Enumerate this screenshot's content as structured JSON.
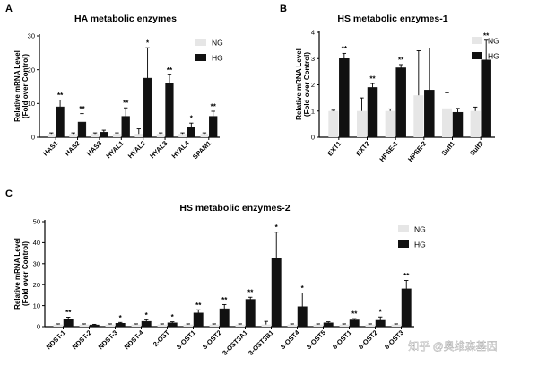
{
  "figure": {
    "watermark": "知乎 @奥维森基因",
    "colors": {
      "NG": "#e6e6e6",
      "HG": "#111111",
      "axis": "#000000",
      "error": "#000000"
    }
  },
  "chart_data": [
    {
      "panel": "A",
      "type": "bar",
      "title": "HA metabolic enzymes",
      "ylabel": [
        "Relative mRNA Level",
        "(Fold over Control)"
      ],
      "ylim": [
        0,
        30
      ],
      "yticks": [
        0,
        10,
        20,
        30
      ],
      "legend": {
        "placement": "top-right",
        "entries": [
          "NG",
          "HG"
        ]
      },
      "categories": [
        "HAS1",
        "HAS2",
        "HAS3",
        "HYAL1",
        "HYAL2",
        "HYAL3",
        "HYAL4",
        "SPAM1"
      ],
      "series": [
        {
          "name": "NG",
          "values": [
            1,
            1,
            1,
            1,
            1,
            1,
            1,
            1
          ],
          "errors": [
            0.3,
            0.3,
            0.3,
            0.3,
            1.5,
            0.3,
            0.3,
            0.3
          ]
        },
        {
          "name": "HG",
          "values": [
            9,
            4.5,
            1.5,
            6.2,
            17.5,
            16,
            3,
            6.2
          ],
          "errors": [
            2,
            2.5,
            0.6,
            2.5,
            9,
            2.5,
            1.2,
            1.5
          ]
        }
      ],
      "significance": [
        "**",
        "**",
        "",
        "**",
        "*",
        "**",
        "*",
        "**"
      ]
    },
    {
      "panel": "B",
      "type": "bar",
      "title": "HS metabolic enzymes-1",
      "ylabel": [
        "Relative mRNA Level",
        "(Fold over Control)"
      ],
      "ylim": [
        0,
        4
      ],
      "yticks": [
        0,
        1,
        2,
        3,
        4
      ],
      "legend": {
        "placement": "top-right",
        "entries": [
          "NG",
          "HG"
        ]
      },
      "categories": [
        "EXT1",
        "EXT2",
        "HPSE-1",
        "HPSE-2",
        "Sulf1",
        "Sulf2"
      ],
      "series": [
        {
          "name": "NG",
          "values": [
            1,
            1,
            1,
            1.6,
            1.1,
            1
          ],
          "errors": [
            0.03,
            0.5,
            0.08,
            1.7,
            0.6,
            0.15
          ]
        },
        {
          "name": "HG",
          "values": [
            3,
            1.9,
            2.65,
            1.8,
            0.95,
            2.95
          ],
          "errors": [
            0.2,
            0.15,
            0.12,
            1.6,
            0.15,
            0.75
          ]
        }
      ],
      "significance": [
        "**",
        "**",
        "**",
        "",
        "",
        "**"
      ]
    },
    {
      "panel": "C",
      "type": "bar",
      "title": "HS metabolic enzymes-2",
      "ylabel": [
        "Relative mRNA Level",
        "(Fold over Control)"
      ],
      "ylim": [
        0,
        50
      ],
      "yticks": [
        0,
        10,
        20,
        30,
        40,
        50
      ],
      "legend": {
        "placement": "top-right",
        "entries": [
          "NG",
          "HG"
        ]
      },
      "categories": [
        "NDST-1",
        "NDST-2",
        "NDST-3",
        "NDST-4",
        "2-OST",
        "3-OST1",
        "3-OST2",
        "3-OST3A1",
        "3-OST3B1",
        "3-OST4",
        "3-OST5",
        "6-OST1",
        "6-OST2",
        "6-OST3"
      ],
      "series": [
        {
          "name": "NG",
          "values": [
            1,
            1,
            1,
            1,
            1,
            1,
            1,
            1,
            1,
            1,
            1,
            1,
            1,
            1
          ],
          "errors": [
            0.3,
            0.3,
            0.3,
            0.3,
            0.3,
            0.3,
            0.3,
            0.3,
            1.5,
            0.3,
            0.3,
            0.3,
            0.3,
            0.3
          ]
        },
        {
          "name": "HG",
          "values": [
            3.5,
            0.8,
            1.6,
            2.5,
            1.8,
            6.5,
            8.5,
            13,
            32.5,
            9.5,
            1.8,
            3.2,
            3,
            18
          ],
          "errors": [
            1,
            0.3,
            0.4,
            0.8,
            0.5,
            1.5,
            2,
            1,
            12.5,
            6.5,
            0.5,
            0.6,
            1.6,
            4
          ]
        }
      ],
      "significance": [
        "**",
        "",
        "*",
        "*",
        "*",
        "**",
        "**",
        "**",
        "*",
        "*",
        "",
        "**",
        "*",
        "**"
      ]
    }
  ]
}
